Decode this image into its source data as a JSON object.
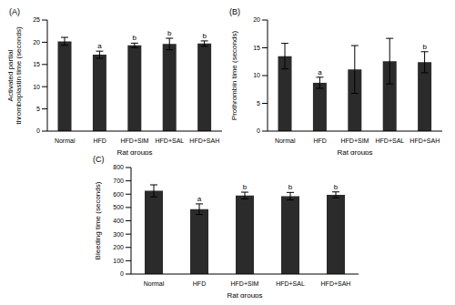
{
  "chart_data": [
    {
      "type": "bar",
      "title": "(A)",
      "x_label": "Rat groups",
      "y_label": "Activated partial thromboplastin time (seconds)",
      "categories": [
        "Normal",
        "HFD",
        "HFD+SIM",
        "HFD+SAL",
        "HFD+SAH"
      ],
      "values": [
        20.2,
        17.2,
        19.3,
        19.6,
        19.7
      ],
      "errors": [
        0.9,
        0.8,
        0.5,
        1.3,
        0.6
      ],
      "significance": [
        null,
        "a",
        "b",
        "b",
        "b"
      ],
      "color": "#2b2b2b",
      "ylim": [
        0,
        25
      ],
      "yticks": [
        0,
        5,
        10,
        15,
        20,
        25
      ]
    },
    {
      "type": "bar",
      "title": "(B)",
      "x_label": "Rat groups",
      "y_label": "Prothrombin time (seconds)",
      "categories": [
        "Normal",
        "HFD",
        "HFD+SIM",
        "HFD+SAL",
        "HFD+SAH"
      ],
      "values": [
        13.5,
        8.7,
        11.1,
        12.6,
        12.4
      ],
      "errors": [
        2.3,
        1.0,
        4.3,
        4.1,
        1.9
      ],
      "significance": [
        null,
        "a",
        null,
        null,
        "b"
      ],
      "color": "#2b2b2b",
      "ylim": [
        0,
        20
      ],
      "yticks": [
        0,
        5,
        10,
        15,
        20
      ]
    },
    {
      "type": "bar",
      "title": "(C)",
      "x_label": "Rat groups",
      "y_label": "Bleeding time (seconds)",
      "categories": [
        "Normal",
        "HFD",
        "HFD+SIM",
        "HFD+SAL",
        "HFD+SAH"
      ],
      "values": [
        625,
        487,
        590,
        585,
        595
      ],
      "errors": [
        45,
        40,
        25,
        28,
        22
      ],
      "significance": [
        null,
        "a",
        "b",
        "b",
        "b"
      ],
      "color": "#2b2b2b",
      "ylim": [
        0,
        800
      ],
      "yticks": [
        0,
        100,
        200,
        300,
        400,
        500,
        600,
        700,
        800
      ]
    }
  ]
}
